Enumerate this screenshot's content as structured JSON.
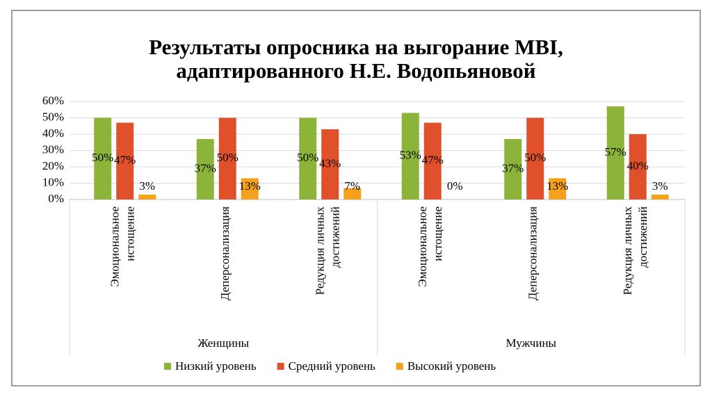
{
  "chart_data": {
    "type": "bar",
    "title": [
      "Результаты опросника на выгорание MBI,",
      "адаптированного Н.Е. Водопьяновой"
    ],
    "groups": [
      {
        "label": "Женщины",
        "categories": [
          [
            "Эмоциональное",
            "истощение"
          ],
          [
            "Деперсонализация"
          ],
          [
            "Редукция личных",
            "достижений"
          ]
        ]
      },
      {
        "label": "Мужчины",
        "categories": [
          [
            "Эмоциональное",
            "истощение"
          ],
          [
            "Деперсонализация"
          ],
          [
            "Редукция личных",
            "достижений"
          ]
        ]
      }
    ],
    "series": [
      {
        "name": "Низкий уровень",
        "color": "#8db43a",
        "values": [
          50,
          37,
          50,
          53,
          37,
          57
        ],
        "value_labels": [
          "50%",
          "37%",
          "50%",
          "53%",
          "37%",
          "57%"
        ]
      },
      {
        "name": "Средний уровень",
        "color": "#e0512b",
        "values": [
          47,
          50,
          43,
          47,
          50,
          40
        ],
        "value_labels": [
          "47%",
          "50%",
          "43%",
          "47%",
          "50%",
          "40%"
        ]
      },
      {
        "name": "Высокий уровень",
        "color": "#f5a11c",
        "values": [
          3,
          13,
          7,
          0,
          13,
          3
        ],
        "value_labels": [
          "3%",
          "13%",
          "7%",
          "0%",
          "13%",
          "3%"
        ]
      }
    ],
    "ylim": [
      0,
      60
    ],
    "yticks": [
      {
        "value": 0,
        "label": "0%"
      },
      {
        "value": 10,
        "label": "10%"
      },
      {
        "value": 20,
        "label": "20%"
      },
      {
        "value": 30,
        "label": "30%"
      },
      {
        "value": 40,
        "label": "40%"
      },
      {
        "value": 50,
        "label": "50%"
      },
      {
        "value": 60,
        "label": "60%"
      }
    ],
    "grid": true,
    "legend": "bottom"
  }
}
